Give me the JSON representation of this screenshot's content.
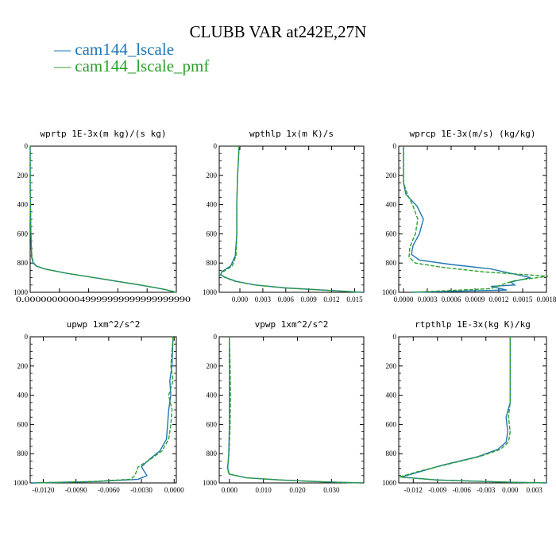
{
  "title": "CLUBB VAR at242E,27N",
  "legend": [
    {
      "label": "cam144_lscale",
      "color": "#1f77b4"
    },
    {
      "label": "cam144_lscale_pmf",
      "color": "#2ca02c"
    }
  ],
  "chart_data": [
    {
      "type": "line",
      "title": "wprtp  1E-3x(m kg)/(s kg)",
      "xlim": [
        0.0,
        1.0
      ],
      "ylim": [
        1000,
        0
      ],
      "y_ticks": [
        "0",
        "200",
        "400",
        "600",
        "800",
        "1000"
      ],
      "x_ticks": [],
      "x_tick_overlap_text": "0.000000000049999999999999999990",
      "series": [
        {
          "name": "cam144_lscale",
          "x": [
            0.0,
            0.0,
            0.005,
            0.01,
            0.02,
            0.04,
            0.1,
            0.25,
            0.5,
            0.75,
            0.92,
            1.0
          ],
          "y": [
            0,
            300,
            600,
            760,
            800,
            820,
            840,
            870,
            910,
            950,
            980,
            1000
          ]
        },
        {
          "name": "cam144_lscale_pmf",
          "x": [
            0.0,
            0.0,
            0.005,
            0.012,
            0.025,
            0.045,
            0.11,
            0.26,
            0.52,
            0.77,
            0.93,
            0.99
          ],
          "y": [
            0,
            300,
            600,
            760,
            800,
            822,
            843,
            872,
            912,
            952,
            982,
            1000
          ]
        }
      ]
    },
    {
      "type": "line",
      "title": "wpthlp  1x(m K)/s",
      "xlim": [
        -0.0027,
        0.0162
      ],
      "ylim": [
        1000,
        0
      ],
      "y_ticks": [
        "0",
        "200",
        "400",
        "600",
        "800",
        "1000"
      ],
      "x_ticks": [
        [
          "0.000",
          0.0
        ],
        [
          "0.003",
          0.003
        ],
        [
          "0.006",
          0.006
        ],
        [
          "0.009",
          0.009
        ],
        [
          "0.012",
          0.012
        ],
        [
          "0.015",
          0.015
        ]
      ],
      "series": [
        {
          "name": "cam144_lscale",
          "x": [
            -0.0001,
            -0.0002,
            -0.0003,
            -0.0004,
            -0.0004,
            -0.0006,
            -0.0012,
            -0.0024,
            -0.0025,
            -0.0018,
            -0.0005,
            0.002,
            0.006,
            0.011,
            0.016
          ],
          "y": [
            0,
            100,
            200,
            400,
            600,
            750,
            820,
            860,
            880,
            900,
            925,
            950,
            970,
            985,
            1000
          ]
        },
        {
          "name": "cam144_lscale_pmf",
          "x": [
            -0.0001,
            -0.0002,
            -0.0003,
            -0.0004,
            -0.0004,
            -0.0005,
            -0.001,
            -0.0022,
            -0.0026,
            -0.0019,
            -0.0006,
            0.0019,
            0.0058,
            0.0108,
            0.0158
          ],
          "y": [
            0,
            100,
            200,
            400,
            600,
            750,
            820,
            860,
            880,
            900,
            925,
            950,
            970,
            985,
            1000
          ]
        }
      ]
    },
    {
      "type": "line",
      "title": "wprcp  1E-3x(m/s) (kg/kg)",
      "xlim": [
        -6e-05,
        0.0018
      ],
      "ylim": [
        1000,
        0
      ],
      "y_ticks": [
        "0",
        "200",
        "400",
        "600",
        "800",
        "1000"
      ],
      "x_ticks": [
        [
          "0.0000",
          0.0
        ],
        [
          "0.0003",
          0.0003
        ],
        [
          "0.0006",
          0.0006
        ],
        [
          "0.0009",
          0.0009
        ],
        [
          "0.0012",
          0.0012
        ],
        [
          "0.0015",
          0.0015
        ],
        [
          "0.0018",
          0.0018
        ]
      ],
      "series": [
        {
          "name": "cam144_lscale",
          "x": [
            0,
            0,
            3e-05,
            0.00017,
            0.00025,
            0.0002,
            0.00012,
            0.0001,
            0.0002,
            0.0006,
            0.0011,
            0.0016,
            0.00135,
            0.0014,
            0.0011,
            0.0013,
            0.0001
          ],
          "y": [
            0,
            250,
            330,
            410,
            500,
            600,
            680,
            740,
            780,
            810,
            840,
            900,
            930,
            950,
            960,
            985,
            1000
          ]
        },
        {
          "name": "cam144_lscale_pmf",
          "x": [
            0,
            0,
            5e-05,
            0.00012,
            0.00018,
            0.00015,
            8e-05,
            7e-05,
            0.00015,
            0.0005,
            0.001,
            0.00155,
            0.00182,
            0.0014,
            0.00125,
            0.0011,
            0.0001
          ],
          "y": [
            0,
            250,
            330,
            410,
            500,
            600,
            690,
            760,
            800,
            830,
            860,
            880,
            890,
            920,
            945,
            975,
            1000
          ]
        }
      ]
    },
    {
      "type": "line",
      "title": "upwp  1xm^2/s^2",
      "xlim": [
        -0.0132,
        0.0002
      ],
      "ylim": [
        1000,
        0
      ],
      "y_ticks": [
        "0",
        "200",
        "400",
        "600",
        "800",
        "1000"
      ],
      "x_ticks": [
        [
          "-0.0120",
          -0.012
        ],
        [
          "-0.0090",
          -0.009
        ],
        [
          "-0.0060",
          -0.006
        ],
        [
          "-0.0030",
          -0.003
        ],
        [
          "0.0000",
          0.0
        ]
      ],
      "series": [
        {
          "name": "cam144_lscale",
          "x": [
            -0.0001,
            -0.0002,
            -0.0004,
            -0.0003,
            -0.0005,
            -0.0006,
            -0.0007,
            -0.0013,
            -0.0023,
            -0.003,
            -0.0025,
            -0.0033,
            -0.007,
            -0.013
          ],
          "y": [
            0,
            200,
            300,
            400,
            500,
            600,
            700,
            780,
            840,
            890,
            950,
            975,
            990,
            1000
          ]
        },
        {
          "name": "cam144_lscale_pmf",
          "x": [
            -0.0001,
            -0.0003,
            -0.0001,
            -0.0005,
            -0.0002,
            -0.0003,
            -0.0005,
            -0.0011,
            -0.0022,
            -0.0033,
            -0.0036,
            -0.004,
            -0.0075,
            -0.0128
          ],
          "y": [
            0,
            200,
            300,
            400,
            500,
            600,
            700,
            780,
            840,
            890,
            950,
            975,
            990,
            1000
          ]
        }
      ]
    },
    {
      "type": "line",
      "title": "vpwp  1xm^2/s^2",
      "xlim": [
        -0.003,
        0.0395
      ],
      "ylim": [
        1000,
        0
      ],
      "y_ticks": [
        "0",
        "200",
        "400",
        "600",
        "800",
        "1000"
      ],
      "x_ticks": [
        [
          "0.000",
          0.0
        ],
        [
          "0.010",
          0.01
        ],
        [
          "0.020",
          0.02
        ],
        [
          "0.030",
          0.03
        ]
      ],
      "series": [
        {
          "name": "cam144_lscale",
          "x": [
            0,
            0,
            0,
            0,
            -0.0002,
            -0.0005,
            0,
            0.005,
            0.015,
            0.028,
            0.039
          ],
          "y": [
            0,
            200,
            400,
            600,
            800,
            900,
            940,
            965,
            980,
            993,
            1000
          ]
        },
        {
          "name": "cam144_lscale_pmf",
          "x": [
            0,
            0.0002,
            0.0003,
            0.0002,
            -0.0001,
            -0.0006,
            -0.0001,
            0.0052,
            0.0152,
            0.0282,
            0.039
          ],
          "y": [
            0,
            200,
            400,
            600,
            800,
            900,
            940,
            965,
            980,
            993,
            1000
          ]
        }
      ]
    },
    {
      "type": "line",
      "title": "rtpthlp  1E-3x(kg K)/kg",
      "xlim": [
        -0.0138,
        0.0045
      ],
      "ylim": [
        1000,
        0
      ],
      "y_ticks": [
        "0",
        "200",
        "400",
        "600",
        "800",
        "1000"
      ],
      "x_ticks": [
        [
          "-0.012",
          -0.012
        ],
        [
          "-0.009",
          -0.009
        ],
        [
          "-0.006",
          -0.006
        ],
        [
          "-0.003",
          -0.003
        ],
        [
          "0.000",
          0.0
        ],
        [
          "0.003",
          0.003
        ]
      ],
      "series": [
        {
          "name": "cam144_lscale",
          "x": [
            0,
            0,
            0,
            -0.0005,
            -0.0003,
            -0.0005,
            -0.0015,
            -0.004,
            -0.0085,
            -0.011,
            -0.0135,
            -0.009,
            0.0,
            0.0045
          ],
          "y": [
            0,
            300,
            450,
            550,
            650,
            720,
            770,
            820,
            880,
            920,
            960,
            980,
            995,
            1000
          ]
        },
        {
          "name": "cam144_lscale_pmf",
          "x": [
            0,
            0,
            0,
            -0.0002,
            0.0,
            -0.0002,
            -0.0012,
            -0.0038,
            -0.0083,
            -0.0113,
            -0.0137,
            -0.0092,
            -0.0002,
            0.0044
          ],
          "y": [
            0,
            300,
            450,
            550,
            650,
            720,
            770,
            820,
            880,
            920,
            960,
            980,
            995,
            1000
          ]
        }
      ]
    }
  ]
}
